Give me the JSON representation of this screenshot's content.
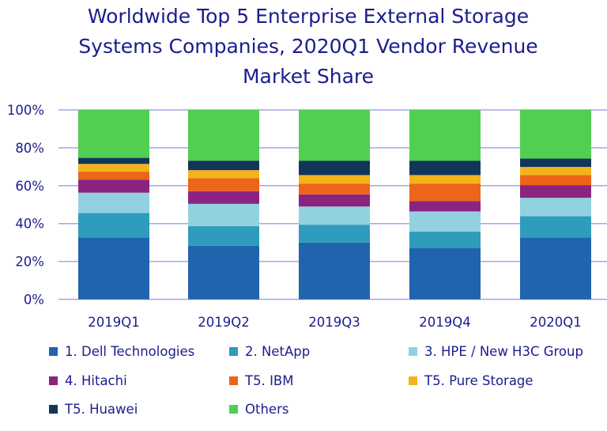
{
  "chart_data": {
    "type": "bar",
    "stacked": true,
    "title": [
      "Worldwide Top 5 Enterprise External Storage",
      "Systems Companies, 2020Q1 Vendor Revenue",
      "Market Share"
    ],
    "categories": [
      "2019Q1",
      "2019Q2",
      "2019Q3",
      "2019Q4",
      "2020Q1"
    ],
    "ylim": [
      0,
      100
    ],
    "yticks": [
      "0%",
      "20%",
      "40%",
      "60%",
      "80%",
      "100%"
    ],
    "grid": true,
    "legend_placement": "bottom",
    "series": [
      {
        "name": "1. Dell Technologies",
        "color": "#1f64ad",
        "values": [
          32.6,
          28.2,
          29.9,
          27.1,
          32.6
        ]
      },
      {
        "name": "2. NetApp",
        "color": "#2e9cbd",
        "values": [
          13.0,
          10.4,
          9.5,
          8.7,
          11.3
        ]
      },
      {
        "name": "3. HPE / New H3C Group",
        "color": "#92d1df",
        "values": [
          10.7,
          11.8,
          9.6,
          10.6,
          9.7
        ]
      },
      {
        "name": "4. Hitachi",
        "color": "#8b2480",
        "values": [
          6.9,
          6.7,
          6.4,
          5.5,
          6.7
        ]
      },
      {
        "name": "T5. IBM",
        "color": "#ec6519",
        "values": [
          4.2,
          6.8,
          5.7,
          9.2,
          5.3
        ]
      },
      {
        "name": "T5. Pure Storage",
        "color": "#f2b31b",
        "values": [
          4.1,
          4.3,
          4.5,
          4.5,
          4.3
        ]
      },
      {
        "name": "T5. Huawei",
        "color": "#12365a",
        "values": [
          3.2,
          5.0,
          7.6,
          7.6,
          4.4
        ]
      },
      {
        "name": "Others",
        "color": "#50cf50",
        "values": [
          25.3,
          26.8,
          26.8,
          26.8,
          25.7
        ]
      }
    ]
  }
}
